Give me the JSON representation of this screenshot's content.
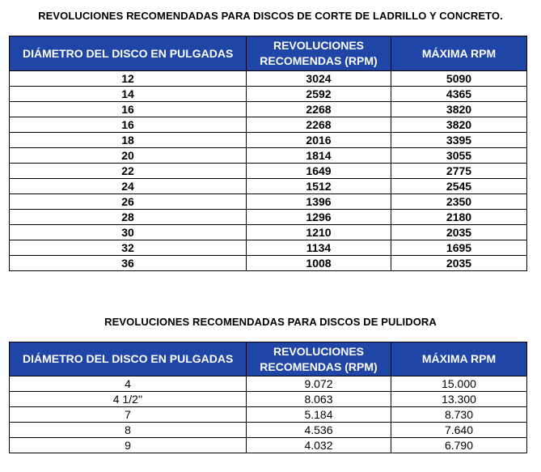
{
  "table1": {
    "title": "REVOLUCIONES RECOMENDADAS PARA DISCOS DE CORTE DE LADRILLO Y CONCRETO.",
    "headers": {
      "diameter": "DIÁMETRO DEL DISCO EN PULGADAS",
      "recommended_line1": "REVOLUCIONES",
      "recommended_line2": "RECOMENDAS (RPM)",
      "max": "MÁXIMA RPM"
    },
    "rows": [
      {
        "diameter": "12",
        "recommended": "3024",
        "max": "5090"
      },
      {
        "diameter": "14",
        "recommended": "2592",
        "max": "4365"
      },
      {
        "diameter": "16",
        "recommended": "2268",
        "max": "3820"
      },
      {
        "diameter": "16",
        "recommended": "2268",
        "max": "3820"
      },
      {
        "diameter": "18",
        "recommended": "2016",
        "max": "3395"
      },
      {
        "diameter": "20",
        "recommended": "1814",
        "max": "3055"
      },
      {
        "diameter": "22",
        "recommended": "1649",
        "max": "2775"
      },
      {
        "diameter": "24",
        "recommended": "1512",
        "max": "2545"
      },
      {
        "diameter": "26",
        "recommended": "1396",
        "max": "2350"
      },
      {
        "diameter": "28",
        "recommended": "1296",
        "max": "2180"
      },
      {
        "diameter": "30",
        "recommended": "1210",
        "max": "2035"
      },
      {
        "diameter": "32",
        "recommended": "1134",
        "max": "1695"
      },
      {
        "diameter": "36",
        "recommended": "1008",
        "max": "2035"
      }
    ]
  },
  "table2": {
    "title": "REVOLUCIONES RECOMENDADAS PARA DISCOS DE PULIDORA",
    "headers": {
      "diameter": "DIÁMETRO DEL DISCO EN PULGADAS",
      "recommended_line1": "REVOLUCIONES",
      "recommended_line2": "RECOMENDAS (RPM)",
      "max": "MÁXIMA RPM"
    },
    "rows": [
      {
        "diameter": "4",
        "recommended": "9.072",
        "max": "15.000"
      },
      {
        "diameter": "4 1/2''",
        "recommended": "8.063",
        "max": "13.300"
      },
      {
        "diameter": "7",
        "recommended": "5.184",
        "max": "8.730"
      },
      {
        "diameter": "8",
        "recommended": "4.536",
        "max": "7.640"
      },
      {
        "diameter": "9",
        "recommended": "4.032",
        "max": "6.790"
      }
    ]
  }
}
